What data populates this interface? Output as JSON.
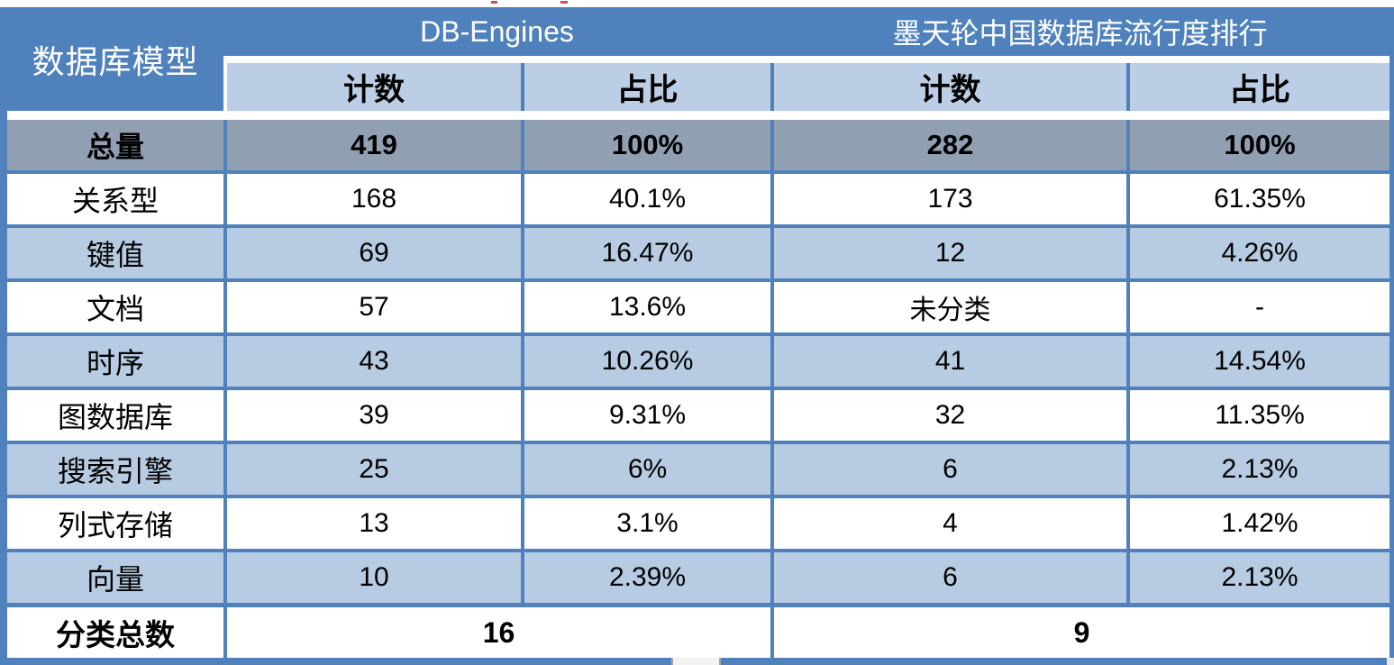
{
  "table": {
    "corner_header": "数据库模型",
    "group_headers": [
      {
        "label": "DB-Engines"
      },
      {
        "label": "墨天轮中国数据库流行度排行"
      }
    ],
    "sub_headers": [
      "计数",
      "占比",
      "计数",
      "占比"
    ],
    "total_row": {
      "label": "总量",
      "cells": [
        "419",
        "100%",
        "282",
        "100%"
      ]
    },
    "rows": [
      {
        "label": "关系型",
        "cells": [
          "168",
          "40.1%",
          "173",
          "61.35%"
        ]
      },
      {
        "label": "键值",
        "cells": [
          "69",
          "16.47%",
          "12",
          "4.26%"
        ]
      },
      {
        "label": "文档",
        "cells": [
          "57",
          "13.6%",
          "未分类",
          "-"
        ]
      },
      {
        "label": "时序",
        "cells": [
          "43",
          "10.26%",
          "41",
          "14.54%"
        ]
      },
      {
        "label": "图数据库",
        "cells": [
          "39",
          "9.31%",
          "32",
          "11.35%"
        ]
      },
      {
        "label": "搜索引擎",
        "cells": [
          "25",
          "6%",
          "6",
          "2.13%"
        ]
      },
      {
        "label": "列式存储",
        "cells": [
          "13",
          "3.1%",
          "4",
          "1.42%"
        ]
      },
      {
        "label": "向量",
        "cells": [
          "10",
          "2.39%",
          "6",
          "2.13%"
        ]
      }
    ],
    "footer_row": {
      "label": "分类总数",
      "db_engines_total": "16",
      "motianlun_total": "9"
    }
  },
  "colors": {
    "header_blue": "#4f81bd",
    "subheader_light_blue": "#bccee6",
    "alt_row_blue": "#b7cbe2",
    "total_row_grey": "#919fb2",
    "border_blue": "#4f81bd",
    "artifact_red": "#c9505c"
  }
}
